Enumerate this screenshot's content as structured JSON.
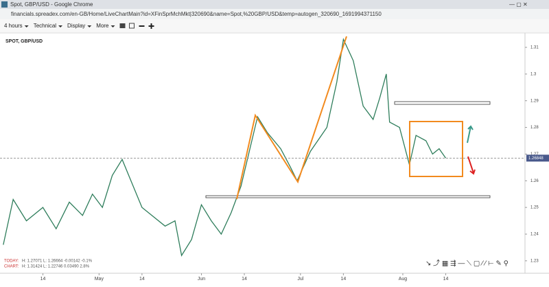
{
  "browser": {
    "title": "Spot, GBP/USD - Google Chrome",
    "url": "financials.spreadex.com/en-GB/Home/LiveChartMain?id=XFinSprMchMkt|320690&name=Spot,%20GBP/USD&temp=autogen_320690_1691994371150"
  },
  "toolbar": {
    "items": [
      "4 hours",
      "Technical",
      "Display",
      "More"
    ]
  },
  "info": {
    "today_label": "TODAY:",
    "today_values": "H: 1.27071  L: 1.26664  -0.00142  -0.1%",
    "chart_label": "CHART:",
    "chart_values": "H: 1.31424  L: 1.22746  0.03490  2.8%"
  },
  "chart_data": {
    "type": "line",
    "title": "SPOT, GBP/USD",
    "x": [
      1,
      4,
      8,
      13,
      17,
      21,
      25,
      28,
      31,
      34,
      37,
      39,
      43,
      46,
      50,
      53,
      55,
      58,
      61,
      64,
      67,
      70,
      73,
      78,
      81,
      85,
      88,
      90,
      94,
      99,
      102,
      104,
      107,
      110,
      113,
      115,
      117,
      118,
      121,
      124,
      126,
      129,
      131,
      133,
      135
    ],
    "series": [
      {
        "name": "GBP/USD",
        "color": "#2e7d5b",
        "values": [
          1.236,
          1.253,
          1.245,
          1.25,
          1.242,
          1.252,
          1.247,
          1.255,
          1.25,
          1.262,
          1.268,
          1.262,
          1.25,
          1.247,
          1.243,
          1.245,
          1.232,
          1.238,
          1.251,
          1.245,
          1.24,
          1.248,
          1.258,
          1.284,
          1.278,
          1.272,
          1.265,
          1.26,
          1.271,
          1.28,
          1.297,
          1.313,
          1.305,
          1.288,
          1.283,
          1.291,
          1.3,
          1.282,
          1.28,
          1.266,
          1.277,
          1.275,
          1.27,
          1.272,
          1.2685
        ]
      }
    ],
    "current": 1.26848,
    "xlim": [
      0,
      159
    ],
    "ylim": [
      1.2261,
      1.3154
    ],
    "xticks": [
      {
        "value": 13,
        "label": "14"
      },
      {
        "value": 30,
        "label": "May"
      },
      {
        "value": 43,
        "label": "14"
      },
      {
        "value": 61,
        "label": "Jun"
      },
      {
        "value": 74,
        "label": "14"
      },
      {
        "value": 91,
        "label": "Jul"
      },
      {
        "value": 104,
        "label": "14"
      },
      {
        "value": 122,
        "label": "Aug"
      },
      {
        "value": 135,
        "label": "14"
      }
    ],
    "yticks": [
      1.23,
      1.24,
      1.25,
      1.26,
      1.27,
      1.28,
      1.29,
      1.3,
      1.31
    ]
  }
}
